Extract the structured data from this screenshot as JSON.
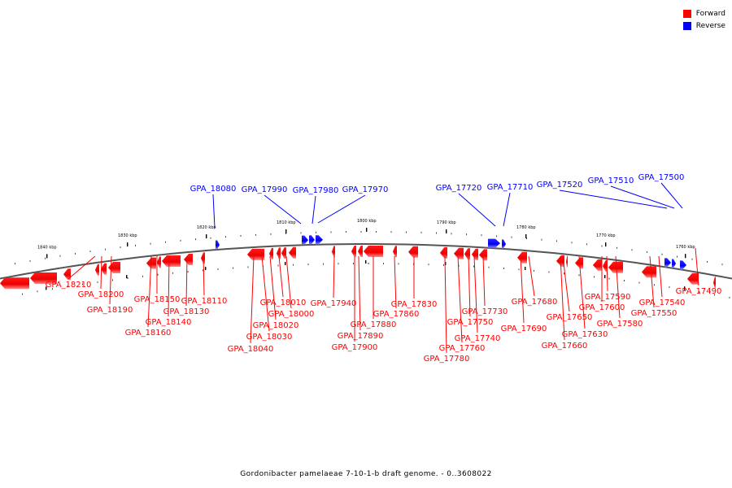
{
  "legend": {
    "forward_label": "Forward",
    "reverse_label": "Reverse",
    "forward_color": "#ff0000",
    "reverse_color": "#0000ff"
  },
  "caption": "Gordonibacter pamelaeae 7-10-1-b draft genome. - 0..3608022",
  "axis_ticks": [
    "1840 kbp",
    "1830 kbp",
    "1820 kbp",
    "1810 kbp",
    "1800 kbp",
    "1790 kbp",
    "1780 kbp",
    "1770 kbp",
    "1760 kbp"
  ],
  "reverse_genes": [
    "GPA_18080",
    "GPA_17990",
    "GPA_17980",
    "GPA_17970",
    "GPA_17720",
    "GPA_17710",
    "GPA_17520",
    "GPA_17510",
    "GPA_17500"
  ],
  "forward_genes": [
    "GPA_18210",
    "GPA_18200",
    "GPA_18190",
    "GPA_18160",
    "GPA_18150",
    "GPA_18140",
    "GPA_18130",
    "GPA_18110",
    "GPA_18040",
    "GPA_18030",
    "GPA_18020",
    "GPA_18010",
    "GPA_18000",
    "GPA_17940",
    "GPA_17900",
    "GPA_17890",
    "GPA_17880",
    "GPA_17860",
    "GPA_17830",
    "GPA_17780",
    "GPA_17760",
    "GPA_17750",
    "GPA_17740",
    "GPA_17730",
    "GPA_17690",
    "GPA_17680",
    "GPA_17660",
    "GPA_17650",
    "GPA_17630",
    "GPA_17600",
    "GPA_17590",
    "GPA_17580",
    "GPA_17550",
    "GPA_17540",
    "GPA_17490"
  ]
}
